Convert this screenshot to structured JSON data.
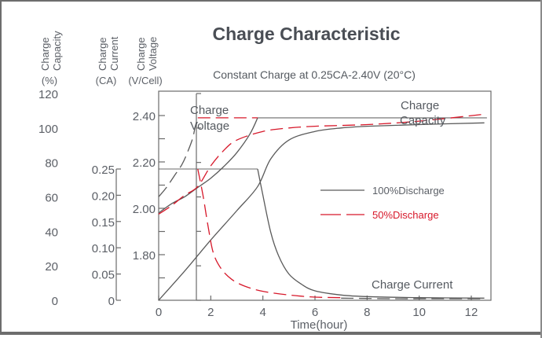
{
  "chart_data": {
    "type": "line",
    "title": "Charge Characteristic",
    "subtitle": "Constant Charge at 0.25CA-2.40V  (20°C)",
    "xlabel": "Time(hour)",
    "xlim": [
      0,
      12.6
    ],
    "x_ticks": [
      0,
      2,
      4,
      6,
      8,
      10,
      12
    ],
    "x_tick_labels": [
      "0",
      "2",
      "4",
      "6",
      "8",
      "10",
      "12"
    ],
    "grid": false,
    "axes": {
      "capacity": {
        "label_line1": "Charge",
        "label_line2": "Capacity",
        "unit": "(%)",
        "ylim": [
          0,
          120
        ],
        "ticks": [
          0,
          20,
          40,
          60,
          80,
          100,
          120
        ],
        "tick_labels": [
          "0",
          "20",
          "40",
          "60",
          "80",
          "100",
          "120"
        ]
      },
      "current": {
        "label_line1": "Charge",
        "label_line2": "Current",
        "unit": "(CA)",
        "ylim": [
          0,
          0.25
        ],
        "ticks": [
          0,
          0.05,
          0.1,
          0.15,
          0.2,
          0.25
        ],
        "tick_labels": [
          "0",
          "0.05",
          "0.10",
          "0.15",
          "0.20",
          "0.25"
        ]
      },
      "voltage": {
        "label_line1": "Charge",
        "label_line2": "Voltage",
        "unit": "(V/Cell)",
        "ylim": [
          1.6,
          2.5
        ],
        "ticks": [
          1.8,
          2.0,
          2.2,
          2.4
        ],
        "tick_labels": [
          "1.80",
          "2.00",
          "2.20",
          "2.40"
        ],
        "minor_ticks": [
          1.7,
          1.9,
          2.1,
          2.3
        ]
      }
    },
    "annotations": {
      "voltage": "Charge\nVoltage",
      "voltage_line1": "Charge",
      "voltage_line2": "Voltage",
      "capacity_line1": "Charge",
      "capacity_line2": "Capacity",
      "current": "Charge Current"
    },
    "legend": {
      "position": "center-right",
      "entries": [
        {
          "name": "100%Discharge",
          "color": "#5a5a5a",
          "style": "solid"
        },
        {
          "name": "50%Discharge",
          "color": "#d7182a",
          "style": "dashed"
        }
      ]
    },
    "reference_lines": [
      {
        "axis": "voltage",
        "value": 2.39,
        "x_from": 3.8,
        "x_to": 12.6
      },
      {
        "axis": "current",
        "value": 0.25,
        "x_from": 0,
        "x_to": 3.8
      }
    ],
    "series": [
      {
        "name": "Voltage 100%Discharge",
        "axis": "voltage",
        "color": "#5a5a5a",
        "style": "solid",
        "x": [
          0,
          0.5,
          1.0,
          1.5,
          2.0,
          2.5,
          3.0,
          3.5,
          3.8
        ],
        "y": [
          1.98,
          2.02,
          2.05,
          2.09,
          2.13,
          2.18,
          2.24,
          2.32,
          2.39
        ]
      },
      {
        "name": "Voltage 50%Discharge",
        "axis": "voltage",
        "color": "#5a5a5a",
        "style": "dashed",
        "x": [
          0,
          0.3,
          0.6,
          0.9,
          1.1,
          1.3,
          1.4,
          1.5
        ],
        "y": [
          2.05,
          2.09,
          2.14,
          2.19,
          2.24,
          2.3,
          2.35,
          2.39
        ]
      },
      {
        "name": "Voltage 50%Discharge plateau",
        "axis": "voltage",
        "color": "#d7182a",
        "style": "dashed",
        "x": [
          1.5,
          3.8
        ],
        "y": [
          2.39,
          2.39
        ]
      },
      {
        "name": "Capacity 100%Discharge",
        "axis": "capacity",
        "color": "#5a5a5a",
        "style": "solid",
        "x": [
          0,
          1,
          2,
          3,
          3.8,
          4.3,
          5.0,
          6.0,
          7.0,
          8.0,
          10.0,
          12.5
        ],
        "y": [
          0,
          17,
          35,
          52,
          66,
          82,
          93,
          98,
          100,
          101,
          102,
          103
        ]
      },
      {
        "name": "Capacity 50%Discharge",
        "axis": "capacity",
        "color": "#d7182a",
        "style": "dashed",
        "x": [
          0,
          0.5,
          1.0,
          1.5,
          2.0,
          2.5,
          3.0,
          4.0,
          5.0,
          6.0,
          8.0,
          10.0,
          12.5
        ],
        "y": [
          50,
          55,
          61,
          66,
          78,
          87,
          93,
          98,
          100,
          101,
          102,
          104,
          108
        ]
      },
      {
        "name": "Current 100%Discharge",
        "axis": "current",
        "color": "#5a5a5a",
        "style": "solid",
        "x": [
          3.8,
          4.0,
          4.3,
          4.6,
          5.0,
          5.5,
          6.0,
          7.0,
          8.0,
          10.0,
          12.5
        ],
        "y": [
          0.25,
          0.2,
          0.13,
          0.085,
          0.05,
          0.03,
          0.018,
          0.01,
          0.007,
          0.005,
          0.004
        ]
      },
      {
        "name": "Current 50%Discharge",
        "axis": "current",
        "color": "#d7182a",
        "style": "dashed",
        "x": [
          1.5,
          1.7,
          1.9,
          2.1,
          2.4,
          2.8,
          3.3,
          4.0,
          5.0,
          6.0,
          7.0
        ],
        "y": [
          0.25,
          0.2,
          0.14,
          0.09,
          0.06,
          0.04,
          0.027,
          0.017,
          0.01,
          0.006,
          0.005
        ]
      },
      {
        "name": "Current 50%Discharge tail",
        "axis": "current",
        "color": "#5a5a5a",
        "style": "dashed",
        "x": [
          7.0,
          9.0,
          11.0,
          12.5
        ],
        "y": [
          0.004,
          0.003,
          0.003,
          0.003
        ]
      }
    ]
  }
}
